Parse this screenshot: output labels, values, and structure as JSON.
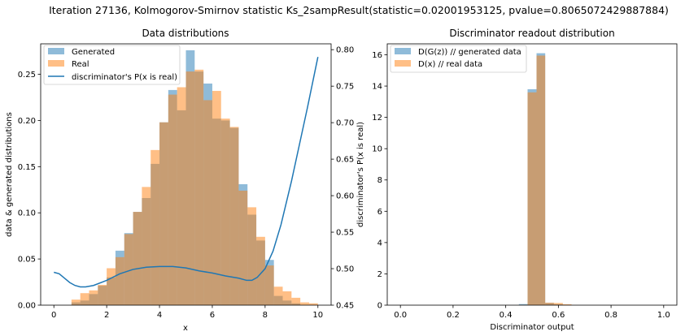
{
  "figure": {
    "suptitle": "Iteration 27136, Kolmogorov-Smirnov statistic Ks_2sampResult(statistic=0.02001953125, pvalue=0.8065072429887884)"
  },
  "colors": {
    "blue": "#1f77b4",
    "orange": "#ff7f0e",
    "blue_hist": "#8fbbd9",
    "orange_hist": "#ffbf86",
    "overlap": "#c49a6c"
  },
  "chart_data": [
    {
      "type": "bar",
      "title": "Data distributions",
      "xlabel": "x",
      "ylabel": "data & generated distributions",
      "y2label": "discriminator's P(x is real)",
      "xlim": [
        -0.5,
        10.5
      ],
      "ylim": [
        0,
        0.283
      ],
      "y2lim": [
        0.45,
        0.808
      ],
      "xticks": [
        "0",
        "2",
        "4",
        "6",
        "8",
        "10"
      ],
      "yticks": [
        "0.00",
        "0.05",
        "0.10",
        "0.15",
        "0.20",
        "0.25"
      ],
      "y2ticks": [
        "0.45",
        "0.50",
        "0.55",
        "0.60",
        "0.65",
        "0.70",
        "0.75",
        "0.80"
      ],
      "legend": [
        "Generated",
        "Real",
        "discriminator's P(x is real)"
      ],
      "legend_position": "upper left",
      "bin_edges": [
        0.0,
        0.333,
        0.667,
        1.0,
        1.333,
        1.667,
        2.0,
        2.333,
        2.667,
        3.0,
        3.333,
        3.667,
        4.0,
        4.333,
        4.667,
        5.0,
        5.333,
        5.667,
        6.0,
        6.333,
        6.667,
        7.0,
        7.333,
        7.667,
        8.0,
        8.333,
        8.667,
        9.0,
        9.333,
        9.667,
        10.0
      ],
      "series": [
        {
          "name": "Generated",
          "values": [
            0,
            0,
            0.003,
            0.005,
            0.012,
            0.021,
            0.03,
            0.059,
            0.078,
            0.101,
            0.116,
            0.153,
            0.198,
            0.233,
            0.211,
            0.276,
            0.253,
            0.24,
            0.202,
            0.2,
            0.192,
            0.131,
            0.098,
            0.07,
            0.049,
            0.01,
            0.005,
            0.002,
            0,
            0
          ]
        },
        {
          "name": "Real",
          "values": [
            0,
            0,
            0.006,
            0.013,
            0.016,
            0.022,
            0.04,
            0.052,
            0.077,
            0.101,
            0.128,
            0.168,
            0.198,
            0.228,
            0.236,
            0.253,
            0.255,
            0.222,
            0.232,
            0.202,
            0.193,
            0.124,
            0.106,
            0.074,
            0.043,
            0.02,
            0.015,
            0.008,
            0.003,
            0.002
          ]
        },
        {
          "name": "discriminator's P(x is real)",
          "x": [
            0,
            0.2,
            0.4,
            0.6,
            0.8,
            1.0,
            1.2,
            1.5,
            2.0,
            2.5,
            3.0,
            3.5,
            4.0,
            4.5,
            5.0,
            5.5,
            6.0,
            6.5,
            7.0,
            7.3,
            7.5,
            7.7,
            8.0,
            8.3,
            8.6,
            9.0,
            9.3,
            9.6,
            10.0
          ],
          "values": [
            0.495,
            0.493,
            0.487,
            0.481,
            0.477,
            0.475,
            0.475,
            0.477,
            0.484,
            0.493,
            0.499,
            0.502,
            0.503,
            0.503,
            0.501,
            0.497,
            0.494,
            0.49,
            0.487,
            0.484,
            0.484,
            0.488,
            0.5,
            0.524,
            0.56,
            0.62,
            0.67,
            0.72,
            0.79
          ]
        }
      ]
    },
    {
      "type": "bar",
      "title": "Discriminator readout distribution",
      "xlabel": "Discriminator output",
      "ylabel": "",
      "xlim": [
        -0.05,
        1.05
      ],
      "ylim": [
        0,
        16.7
      ],
      "xticks": [
        "0.0",
        "0.2",
        "0.4",
        "0.6",
        "0.8",
        "1.0"
      ],
      "yticks": [
        "0",
        "2",
        "4",
        "6",
        "8",
        "10",
        "12",
        "14",
        "16"
      ],
      "legend": [
        "D(G(z)) //  generated data",
        "D(x) // real data"
      ],
      "legend_position": "upper left",
      "bin_edges": [
        0.45,
        0.483,
        0.517,
        0.55,
        0.583,
        0.617,
        0.65
      ],
      "series": [
        {
          "name": "D(G(z)) //  generated data",
          "values": [
            0.07,
            13.8,
            16.1,
            0.14,
            0.05,
            0
          ]
        },
        {
          "name": "D(x) // real data",
          "values": [
            0.02,
            13.6,
            15.95,
            0.16,
            0.14,
            0.06
          ]
        }
      ]
    }
  ]
}
